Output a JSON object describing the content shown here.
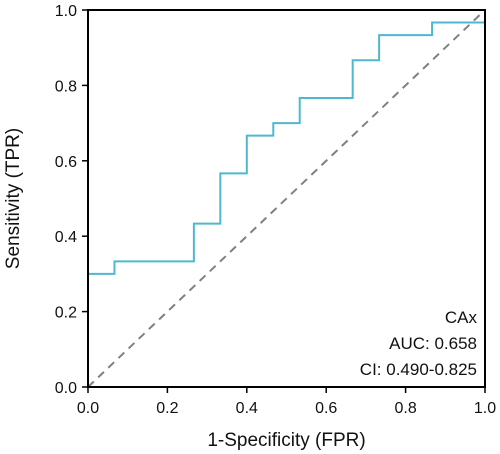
{
  "chart_data": {
    "type": "line",
    "xlabel": "1-Specificity (FPR)",
    "ylabel": "Sensitivity (TPR)",
    "xlim": [
      0,
      1
    ],
    "ylim": [
      0,
      1
    ],
    "x_ticks": [
      0,
      0.2,
      0.4,
      0.6,
      0.8,
      1
    ],
    "y_ticks": [
      0,
      0.2,
      0.4,
      0.6,
      0.8,
      1
    ],
    "x_tick_labels": [
      "0.0",
      "0.2",
      "0.4",
      "0.6",
      "0.8",
      "1.0"
    ],
    "y_tick_labels": [
      "0.0",
      "0.2",
      "0.4",
      "0.6",
      "0.8",
      "1.0"
    ],
    "grid": false,
    "series": [
      {
        "color": "#4fb8cf",
        "x": [
          0,
          0,
          0,
          0.0667,
          0.0667,
          0.2667,
          0.2667,
          0.3333,
          0.3333,
          0.4,
          0.4,
          0.4667,
          0.4667,
          0.5333,
          0.5333,
          0.6667,
          0.6667,
          0.7333,
          0.7333,
          0.8667,
          0.8667,
          1.0
        ],
        "y": [
          0,
          0.3,
          0.3,
          0.3,
          0.3333,
          0.3333,
          0.4333,
          0.4333,
          0.5667,
          0.5667,
          0.6667,
          0.6667,
          0.7,
          0.7,
          0.7667,
          0.7667,
          0.8667,
          0.8667,
          0.9333,
          0.9333,
          0.9667,
          0.9667
        ]
      }
    ],
    "reference_line": {
      "x": [
        0,
        1
      ],
      "y": [
        0,
        1
      ],
      "color": "#808080",
      "style": "dashed"
    },
    "annotations": [
      "CAx",
      "AUC: 0.658",
      "CI: 0.490-0.825"
    ]
  }
}
